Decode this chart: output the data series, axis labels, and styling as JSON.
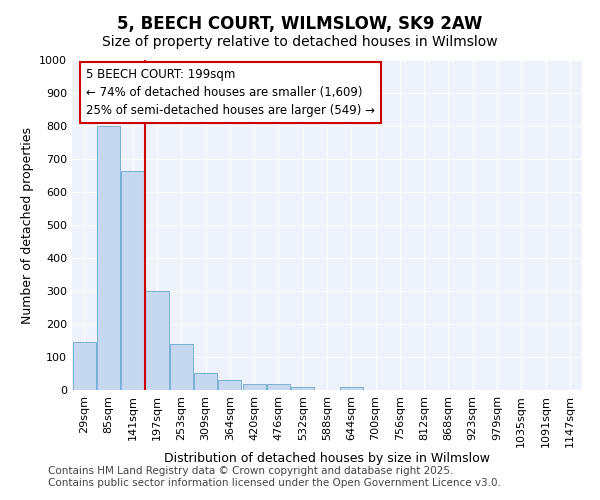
{
  "title": "5, BEECH COURT, WILMSLOW, SK9 2AW",
  "subtitle": "Size of property relative to detached houses in Wilmslow",
  "xlabel": "Distribution of detached houses by size in Wilmslow",
  "ylabel": "Number of detached properties",
  "categories": [
    "29sqm",
    "85sqm",
    "141sqm",
    "197sqm",
    "253sqm",
    "309sqm",
    "364sqm",
    "420sqm",
    "476sqm",
    "532sqm",
    "588sqm",
    "644sqm",
    "700sqm",
    "756sqm",
    "812sqm",
    "868sqm",
    "923sqm",
    "979sqm",
    "1035sqm",
    "1091sqm",
    "1147sqm"
  ],
  "values": [
    145,
    800,
    665,
    300,
    140,
    52,
    30,
    18,
    18,
    10,
    0,
    10,
    0,
    0,
    0,
    0,
    0,
    0,
    0,
    0,
    0
  ],
  "bar_color": "#c5d8f0",
  "bar_edge_color": "#7aafd4",
  "annotation_line1": "5 BEECH COURT: 199sqm",
  "annotation_line2": "← 74% of detached houses are smaller (1,609)",
  "annotation_line3": "25% of semi-detached houses are larger (549) →",
  "annotation_box_color": "#ffffff",
  "annotation_box_edge": "#cc0000",
  "vline_color": "#cc0000",
  "ylim": [
    0,
    1000
  ],
  "yticks": [
    0,
    100,
    200,
    300,
    400,
    500,
    600,
    700,
    800,
    900,
    1000
  ],
  "background_color": "#eef2fb",
  "grid_color": "#ffffff",
  "footer_line1": "Contains HM Land Registry data © Crown copyright and database right 2025.",
  "footer_line2": "Contains public sector information licensed under the Open Government Licence v3.0.",
  "title_fontsize": 12,
  "subtitle_fontsize": 10,
  "axis_label_fontsize": 9,
  "tick_fontsize": 8,
  "annotation_fontsize": 8.5,
  "footer_fontsize": 7.5
}
